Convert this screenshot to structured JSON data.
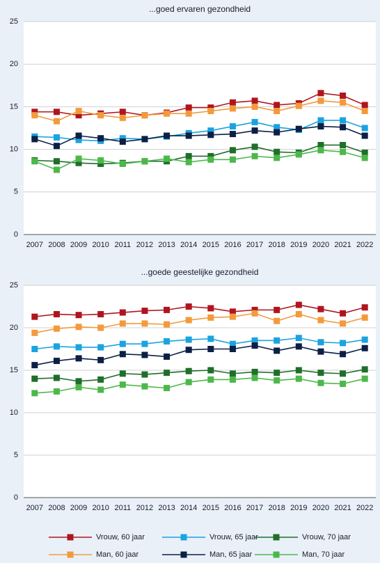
{
  "chart_data": [
    {
      "type": "line",
      "title": "...goed ervaren gezondheid",
      "categories": [
        "2007",
        "2008",
        "2009",
        "2010",
        "2011",
        "2012",
        "2013",
        "2014",
        "2015",
        "2016",
        "2017",
        "2018",
        "2019",
        "2020",
        "2021",
        "2022"
      ],
      "ylim": [
        0,
        25
      ],
      "yticks": [
        0,
        5,
        10,
        15,
        20,
        25
      ],
      "grid": true,
      "series": [
        {
          "name": "Vrouw, 60 jaar",
          "color": "#b0151f",
          "values": [
            14.4,
            14.4,
            14.0,
            14.2,
            14.4,
            14.0,
            14.3,
            14.9,
            14.9,
            15.5,
            15.7,
            15.2,
            15.4,
            16.6,
            16.3,
            15.2
          ]
        },
        {
          "name": "Vrouw, 65 jaar",
          "color": "#1aa3e0",
          "values": [
            11.5,
            11.4,
            11.1,
            11.0,
            11.3,
            11.2,
            11.5,
            11.9,
            12.2,
            12.7,
            13.2,
            12.6,
            12.3,
            13.4,
            13.4,
            12.5
          ]
        },
        {
          "name": "Vrouw, 70 jaar",
          "color": "#1f6e2a",
          "values": [
            8.7,
            8.6,
            8.4,
            8.3,
            8.4,
            8.6,
            8.6,
            9.2,
            9.2,
            9.9,
            10.3,
            9.7,
            9.6,
            10.5,
            10.5,
            9.6
          ]
        },
        {
          "name": "Man, 60 jaar",
          "color": "#f39a3c",
          "values": [
            14.0,
            13.3,
            14.5,
            14.0,
            13.7,
            14.0,
            14.2,
            14.2,
            14.5,
            14.8,
            15.0,
            14.5,
            15.1,
            15.7,
            15.5,
            14.5
          ]
        },
        {
          "name": "Man, 65 jaar",
          "color": "#0c1f45",
          "values": [
            11.2,
            10.4,
            11.6,
            11.3,
            10.9,
            11.2,
            11.6,
            11.6,
            11.7,
            11.8,
            12.2,
            12.0,
            12.4,
            12.7,
            12.6,
            11.6
          ]
        },
        {
          "name": "Man, 70 jaar",
          "color": "#4cb84a",
          "values": [
            8.6,
            7.6,
            8.9,
            8.7,
            8.3,
            8.6,
            8.9,
            8.5,
            8.8,
            8.8,
            9.2,
            9.0,
            9.4,
            9.9,
            9.7,
            9.0
          ]
        }
      ]
    },
    {
      "type": "line",
      "title": "...goede geestelijke gezondheid",
      "categories": [
        "2007",
        "2008",
        "2009",
        "2010",
        "2011",
        "2012",
        "2013",
        "2014",
        "2015",
        "2016",
        "2017",
        "2018",
        "2019",
        "2020",
        "2021",
        "2022"
      ],
      "ylim": [
        0,
        25
      ],
      "yticks": [
        0,
        5,
        10,
        15,
        20,
        25
      ],
      "grid": true,
      "series": [
        {
          "name": "Vrouw, 60 jaar",
          "color": "#b0151f",
          "values": [
            21.3,
            21.6,
            21.5,
            21.6,
            21.8,
            22.0,
            22.1,
            22.5,
            22.3,
            21.9,
            22.1,
            22.1,
            22.7,
            22.2,
            21.7,
            22.4
          ]
        },
        {
          "name": "Vrouw, 65 jaar",
          "color": "#1aa3e0",
          "values": [
            17.5,
            17.8,
            17.7,
            17.7,
            18.1,
            18.1,
            18.4,
            18.6,
            18.7,
            18.1,
            18.5,
            18.5,
            18.8,
            18.3,
            18.2,
            18.6
          ]
        },
        {
          "name": "Vrouw, 70 jaar",
          "color": "#1f6e2a",
          "values": [
            14.0,
            14.1,
            13.7,
            13.9,
            14.6,
            14.5,
            14.7,
            14.9,
            15.0,
            14.6,
            14.8,
            14.7,
            15.0,
            14.7,
            14.6,
            15.1
          ]
        },
        {
          "name": "Man, 60 jaar",
          "color": "#f39a3c",
          "values": [
            19.4,
            19.9,
            20.1,
            20.0,
            20.5,
            20.5,
            20.4,
            20.9,
            21.2,
            21.3,
            21.7,
            20.8,
            21.6,
            20.9,
            20.5,
            21.2
          ]
        },
        {
          "name": "Man, 65 jaar",
          "color": "#0c1f45",
          "values": [
            15.6,
            16.1,
            16.4,
            16.2,
            16.9,
            16.8,
            16.6,
            17.4,
            17.5,
            17.5,
            17.9,
            17.3,
            17.8,
            17.2,
            16.9,
            17.6
          ]
        },
        {
          "name": "Man, 70 jaar",
          "color": "#4cb84a",
          "values": [
            12.3,
            12.5,
            13.0,
            12.7,
            13.3,
            13.1,
            12.9,
            13.6,
            13.9,
            13.9,
            14.1,
            13.8,
            14.0,
            13.5,
            13.4,
            14.0
          ]
        }
      ]
    }
  ]
}
